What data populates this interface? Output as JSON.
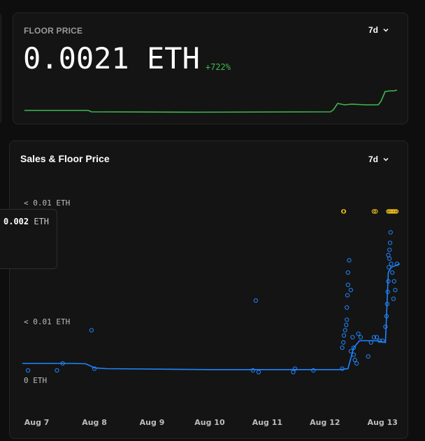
{
  "floor_price": {
    "title": "FLOOR PRICE",
    "period": "7d",
    "value": "0.0021 ETH",
    "change": "+722%",
    "line_color": "#3fb950"
  },
  "sales_chart": {
    "title": "Sales & Floor Price",
    "period": "7d"
  },
  "tooltip": {
    "value": "0.002",
    "unit": "ETH"
  },
  "chart_data": {
    "type": "scatter",
    "title": "Sales & Floor Price",
    "y_tick_labels": [
      "< 0.01 ETH",
      "ETH",
      "< 0.01 ETH",
      "0 ETH"
    ],
    "x_tick_labels": [
      "Aug 7",
      "Aug 8",
      "Aug 9",
      "Aug 10",
      "Aug 11",
      "Aug 12",
      "Aug 13"
    ],
    "x_range": [
      6.75,
      13.3
    ],
    "series": [
      {
        "kind": "floor_line",
        "color": "#1f86ff",
        "points": [
          [
            6.75,
            0.0003
          ],
          [
            7.6,
            0.0003
          ],
          [
            7.85,
            0.00028
          ],
          [
            8.0,
            5e-05
          ],
          [
            8.2,
            0.0
          ],
          [
            10.0,
            -5e-05
          ],
          [
            11.0,
            -5e-05
          ],
          [
            12.25,
            -5e-05
          ],
          [
            12.4,
            0.0
          ],
          [
            12.5,
            0.0012
          ],
          [
            12.6,
            0.0016
          ],
          [
            12.9,
            0.0016
          ],
          [
            13.05,
            0.0015
          ],
          [
            13.1,
            0.0055
          ],
          [
            13.15,
            0.0058
          ],
          [
            13.3,
            0.006
          ]
        ]
      },
      {
        "kind": "sales",
        "color": "#1f86ff",
        "points": [
          [
            6.85,
            -0.0001
          ],
          [
            7.35,
            -0.0001
          ],
          [
            7.45,
            0.0003
          ],
          [
            7.95,
            0.0022
          ],
          [
            8.0,
            0.0
          ],
          [
            10.75,
            -0.0001
          ],
          [
            10.8,
            0.0039
          ],
          [
            10.85,
            -0.0002
          ],
          [
            11.45,
            -0.0002
          ],
          [
            11.48,
            0.0
          ],
          [
            11.8,
            -0.0001
          ],
          [
            12.3,
            0.0
          ],
          [
            12.3,
            0.0012
          ],
          [
            12.32,
            0.0015
          ],
          [
            12.33,
            0.0019
          ],
          [
            12.35,
            0.0022
          ],
          [
            12.37,
            0.0025
          ],
          [
            12.38,
            0.0028
          ],
          [
            12.38,
            0.0035
          ],
          [
            12.39,
            0.0042
          ],
          [
            12.4,
            0.0048
          ],
          [
            12.4,
            0.0055
          ],
          [
            12.42,
            0.0062
          ],
          [
            12.45,
            0.0045
          ],
          [
            12.48,
            0.0018
          ],
          [
            12.5,
            0.0012
          ],
          [
            12.5,
            0.0008
          ],
          [
            12.52,
            0.0005
          ],
          [
            12.55,
            0.0003
          ],
          [
            12.45,
            0.001
          ],
          [
            12.58,
            0.002
          ],
          [
            12.62,
            0.0018
          ],
          [
            12.75,
            0.0007
          ],
          [
            12.8,
            0.0015
          ],
          [
            12.85,
            0.0018
          ],
          [
            12.9,
            0.0018
          ],
          [
            12.95,
            0.0016
          ],
          [
            13.0,
            0.0016
          ],
          [
            13.05,
            0.0024
          ],
          [
            13.07,
            0.003
          ],
          [
            13.08,
            0.0037
          ],
          [
            13.09,
            0.0044
          ],
          [
            13.1,
            0.005
          ],
          [
            13.11,
            0.0058
          ],
          [
            13.12,
            0.0063
          ],
          [
            13.13,
            0.0072
          ],
          [
            13.14,
            0.0078
          ],
          [
            13.15,
            0.006
          ],
          [
            13.17,
            0.0055
          ],
          [
            13.19,
            0.004
          ],
          [
            13.2,
            0.005
          ],
          [
            13.22,
            0.0045
          ],
          [
            13.25,
            0.006
          ],
          [
            13.12,
            0.0068
          ],
          [
            13.1,
            0.0065
          ]
        ]
      },
      {
        "kind": "listings",
        "color": "#f5c518",
        "points": [
          [
            12.32,
            0.009
          ],
          [
            12.33,
            0.009
          ],
          [
            12.85,
            0.009
          ],
          [
            12.88,
            0.009
          ],
          [
            13.1,
            0.009
          ],
          [
            13.12,
            0.009
          ],
          [
            13.14,
            0.009
          ],
          [
            13.16,
            0.009
          ],
          [
            13.18,
            0.009
          ],
          [
            13.2,
            0.009
          ],
          [
            13.22,
            0.009
          ],
          [
            13.24,
            0.009
          ]
        ]
      }
    ],
    "grid": false,
    "legend": "none"
  }
}
